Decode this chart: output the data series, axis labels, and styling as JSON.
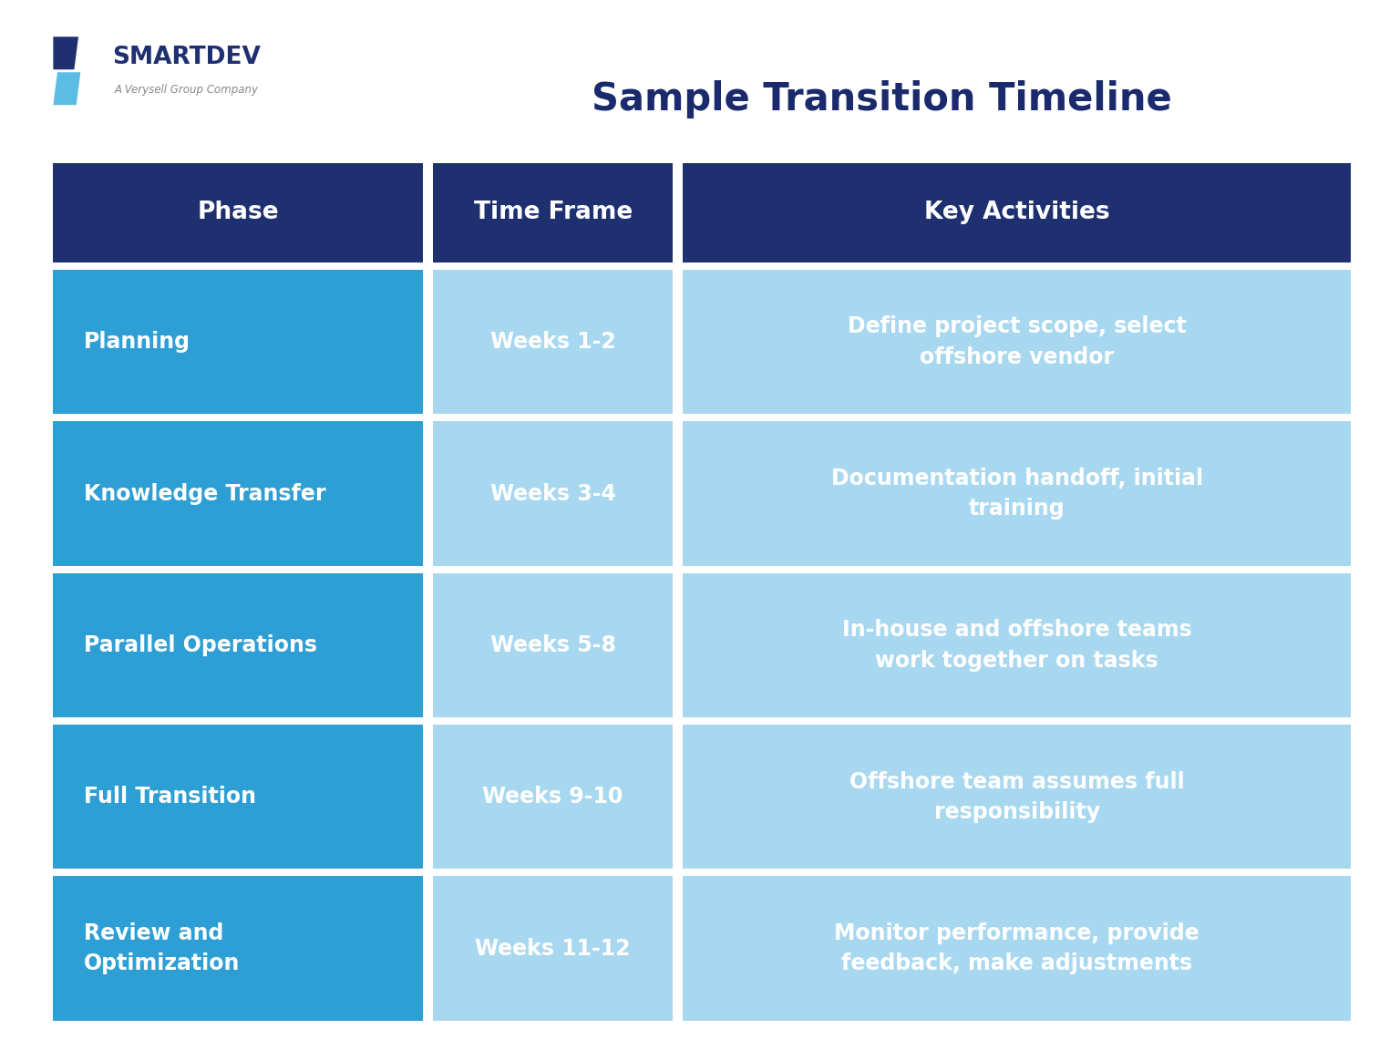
{
  "title": "Sample Transition Timeline",
  "title_color": "#1a2a6c",
  "title_fontsize": 30,
  "bg_color": "#ffffff",
  "header_bg": "#1e3070",
  "header_text_color": "#ffffff",
  "header_fontsize": 19,
  "col1_bg": "#2e9fd4",
  "col2_bg": "#a8d8f0",
  "col3_bg": "#a8d8f0",
  "cell_text_color": "#ffffff",
  "cell_fontsize": 17,
  "gap_color": "#ffffff",
  "headers": [
    "Phase",
    "Time Frame",
    "Key Activities"
  ],
  "rows": [
    {
      "phase": "Planning",
      "timeframe": "Weeks 1-2",
      "activities": "Define project scope, select\noffshore vendor"
    },
    {
      "phase": "Knowledge Transfer",
      "timeframe": "Weeks 3-4",
      "activities": "Documentation handoff, initial\ntraining"
    },
    {
      "phase": "Parallel Operations",
      "timeframe": "Weeks 5-8",
      "activities": "In-house and offshore teams\nwork together on tasks"
    },
    {
      "phase": "Full Transition",
      "timeframe": "Weeks 9-10",
      "activities": "Offshore team assumes full\nresponsibility"
    },
    {
      "phase": "Review and\nOptimization",
      "timeframe": "Weeks 11-12",
      "activities": "Monitor performance, provide\nfeedback, make adjustments"
    }
  ],
  "smartdev_text": "SMARTDEV",
  "smartdev_sub": "A Verysell Group Company",
  "logo_dark": "#1e3070",
  "logo_light": "#5bbce4",
  "logo_mid": "#3a9fd1"
}
